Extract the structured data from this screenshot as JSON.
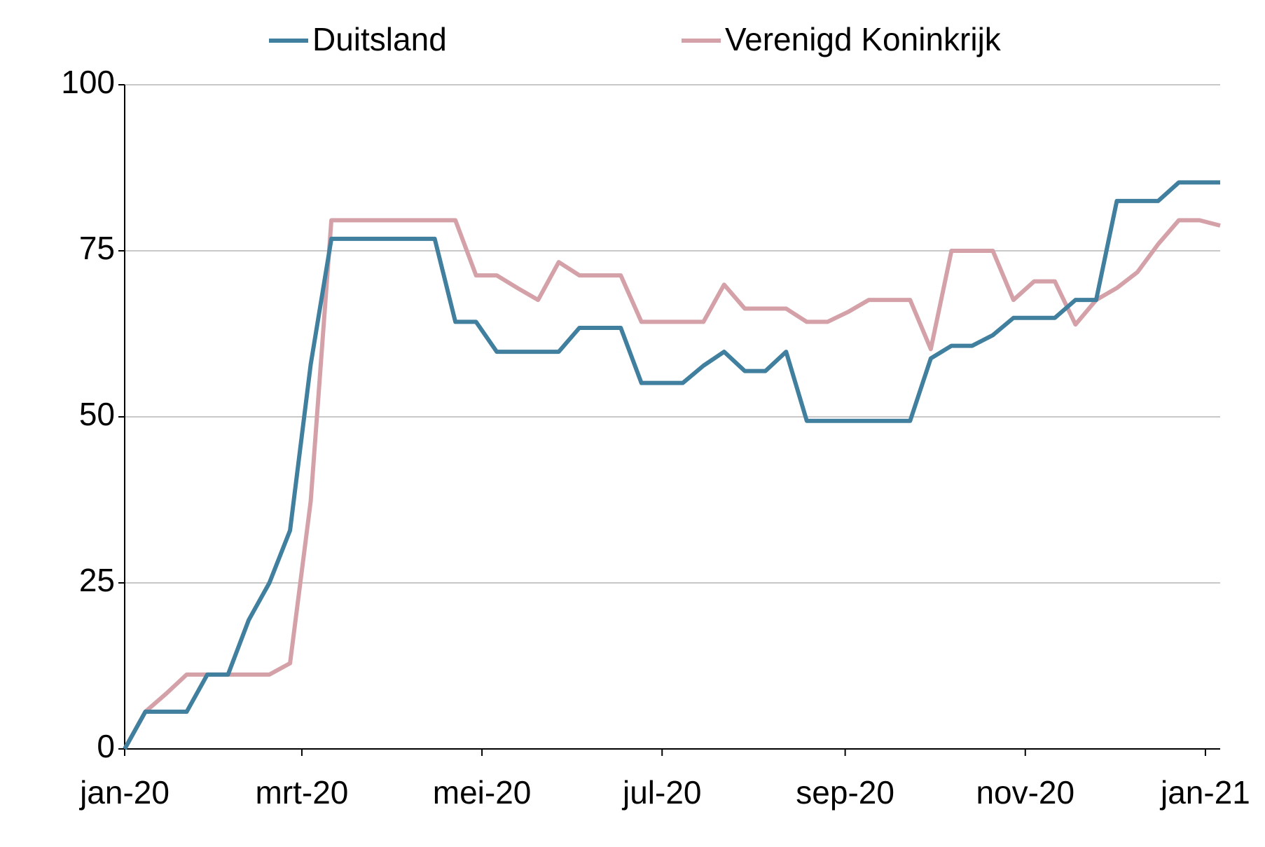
{
  "chart_data": {
    "type": "line",
    "x": [
      0,
      7,
      14,
      21,
      28,
      35,
      42,
      49,
      56,
      63,
      70,
      77,
      84,
      91,
      98,
      105,
      112,
      119,
      126,
      133,
      140,
      147,
      154,
      161,
      168,
      175,
      182,
      189,
      196,
      203,
      210,
      217,
      224,
      231,
      238,
      245,
      252,
      259,
      266,
      273,
      280,
      287,
      294,
      301,
      308,
      315,
      322,
      329,
      336,
      343,
      350,
      357,
      364,
      371
    ],
    "series": [
      {
        "name": "Duitsland",
        "color": "#417f9e",
        "values": [
          0,
          5.6,
          5.6,
          5.6,
          11.2,
          11.2,
          19.4,
          25,
          32.9,
          57.9,
          76.8,
          76.8,
          76.8,
          76.8,
          76.8,
          76.8,
          64.3,
          64.3,
          59.8,
          59.8,
          59.8,
          59.8,
          63.4,
          63.4,
          63.4,
          55.1,
          55.1,
          55.1,
          57.7,
          59.8,
          56.9,
          56.9,
          59.8,
          49.4,
          49.4,
          49.4,
          49.4,
          49.4,
          49.4,
          58.8,
          60.7,
          60.7,
          62.3,
          64.9,
          64.9,
          64.9,
          67.6,
          67.6,
          82.5,
          82.5,
          82.5,
          85.3,
          85.3,
          85.3
        ]
      },
      {
        "name": "Verenigd Koninkrijk",
        "color": "#d4a1a8",
        "values": [
          0,
          5.6,
          8.3,
          11.2,
          11.2,
          11.2,
          11.2,
          11.2,
          12.9,
          37.3,
          79.6,
          79.6,
          79.6,
          79.6,
          79.6,
          79.6,
          79.6,
          71.3,
          71.3,
          69.4,
          67.6,
          73.3,
          71.3,
          71.3,
          71.3,
          64.3,
          64.3,
          64.3,
          64.3,
          69.9,
          66.3,
          66.3,
          66.3,
          64.3,
          64.3,
          65.8,
          67.6,
          67.6,
          67.6,
          60.2,
          75,
          75,
          75,
          67.6,
          70.4,
          70.4,
          63.9,
          67.6,
          69.4,
          71.8,
          76,
          79.6,
          79.6,
          78.8
        ]
      }
    ],
    "xlim": [
      0,
      371
    ],
    "xticks": [
      {
        "value": 0,
        "label": "jan-20"
      },
      {
        "value": 60,
        "label": "mrt-20"
      },
      {
        "value": 121,
        "label": "mei-20"
      },
      {
        "value": 182,
        "label": "jul-20"
      },
      {
        "value": 244,
        "label": "sep-20"
      },
      {
        "value": 305,
        "label": "nov-20"
      },
      {
        "value": 366,
        "label": "jan-21"
      }
    ],
    "ylim": [
      0,
      100
    ],
    "yticks": [
      0,
      25,
      50,
      75,
      100
    ],
    "grid": true,
    "legend": "top"
  }
}
